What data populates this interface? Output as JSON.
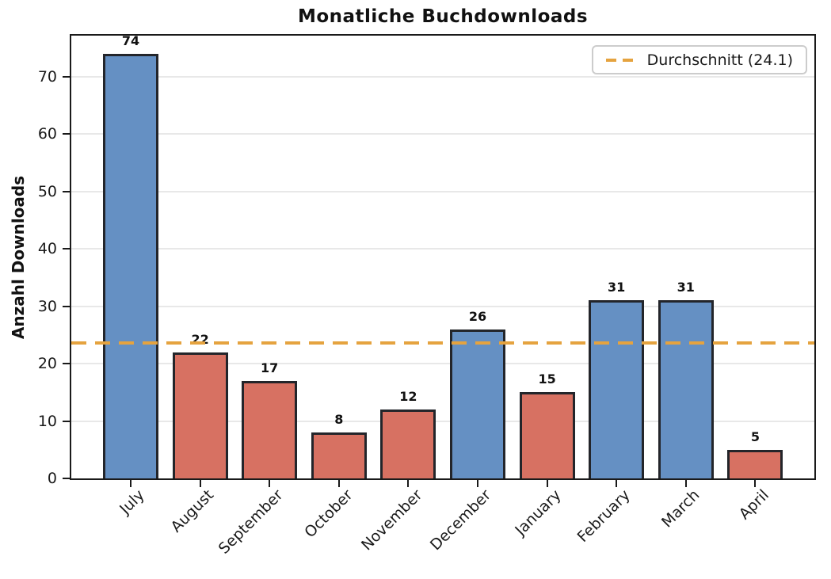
{
  "chart_data": {
    "type": "bar",
    "title": "Monatliche Buchdownloads",
    "xlabel": "",
    "ylabel": "Anzahl Downloads",
    "categories": [
      "July",
      "August",
      "September",
      "October",
      "November",
      "December",
      "January",
      "February",
      "March",
      "April"
    ],
    "values": [
      74,
      22,
      17,
      8,
      12,
      26,
      15,
      31,
      31,
      5
    ],
    "bar_colors": [
      "#6590C3",
      "#D77162",
      "#D77162",
      "#D77162",
      "#D77162",
      "#6590C3",
      "#D77162",
      "#6590C3",
      "#6590C3",
      "#D77162"
    ],
    "bar_edge_color": "#23252a",
    "value_labels": [
      "74",
      "22",
      "17",
      "8",
      "12",
      "26",
      "15",
      "31",
      "31",
      "5"
    ],
    "yticks": [
      0,
      10,
      20,
      30,
      40,
      50,
      60,
      70
    ],
    "ylim": [
      0,
      77.7
    ],
    "grid": "horizontal",
    "grid_color": "#e8e8e8",
    "x_tick_rotation_deg": 45,
    "average_line": {
      "value": 24.1,
      "color": "#E5A33F",
      "style": "dashed"
    },
    "legend": {
      "position": "top-right",
      "entries": [
        {
          "label": "Durchschnitt (24.1)",
          "color": "#E5A33F",
          "line_style": "dashed"
        }
      ]
    },
    "colors": {
      "above_average_bar": "#6590C3",
      "below_average_bar": "#D77162",
      "average_line": "#E5A33F",
      "axis": "#1a1a1a"
    }
  }
}
